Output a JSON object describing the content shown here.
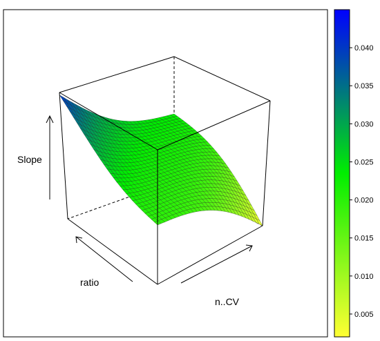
{
  "chart_data": {
    "type": "surface-3d",
    "title": "",
    "axes": {
      "x": {
        "label": "ratio"
      },
      "y": {
        "label": "n..CV"
      },
      "z": {
        "label": "Slope"
      }
    },
    "colorbar": {
      "ticks": [
        "0.040",
        "0.035",
        "0.030",
        "0.025",
        "0.020",
        "0.015",
        "0.010",
        "0.005"
      ],
      "tick_values": [
        0.04,
        0.035,
        0.03,
        0.025,
        0.02,
        0.015,
        0.01,
        0.005
      ],
      "range": [
        0.002,
        0.045
      ],
      "colors": [
        "#ffff33",
        "#00ee00",
        "#0000ff"
      ]
    },
    "surface": {
      "z_range": [
        0.003,
        0.04
      ],
      "description": "z decreases from max at (ratio low, n..CV low) to min at (ratio high, n..CV high)"
    }
  }
}
